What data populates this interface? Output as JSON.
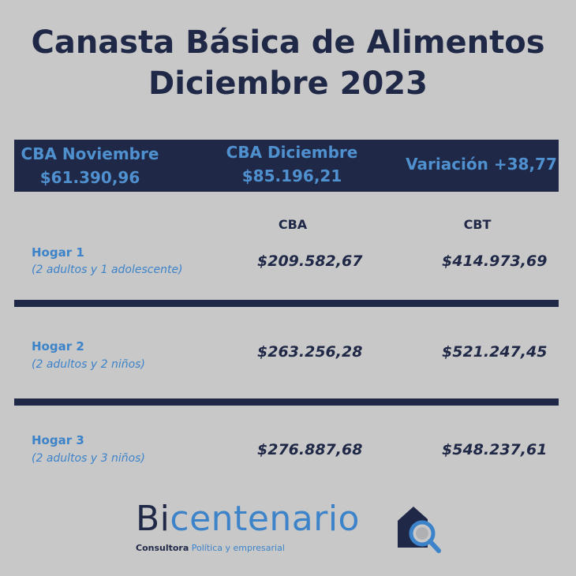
{
  "title": {
    "line1": "Canasta Básica de Alimentos",
    "line2": "Diciembre 2023"
  },
  "summary": {
    "noviembre_label": "CBA Noviembre",
    "noviembre_value": "$61.390,96",
    "diciembre_label": "CBA Diciembre",
    "diciembre_value": "$85.196,21",
    "variacion": "Variación +38,77"
  },
  "columns": {
    "cba": "CBA",
    "cbt": "CBT"
  },
  "hogares": [
    {
      "name": "Hogar 1",
      "desc": "(2 adultos y 1 adolescente)",
      "cba": "$209.582,67",
      "cbt": "$414.973,69"
    },
    {
      "name": "Hogar 2",
      "desc": "(2 adultos y 2 niños)",
      "cba": "$263.256,28",
      "cbt": "$521.247,45"
    },
    {
      "name": "Hogar 3",
      "desc": "(2 adultos y 3 niños)",
      "cba": "$276.887,68",
      "cbt": "$548.237,61"
    }
  ],
  "logo": {
    "bi": "Bi",
    "rest": "centenario",
    "sub1": "Consultora",
    "sub2": "Política y empresarial",
    "icon": "house-magnifier-icon"
  },
  "colors": {
    "background": "#c8c8c8",
    "navy": "#1f2846",
    "blue": "#3c83c9"
  }
}
